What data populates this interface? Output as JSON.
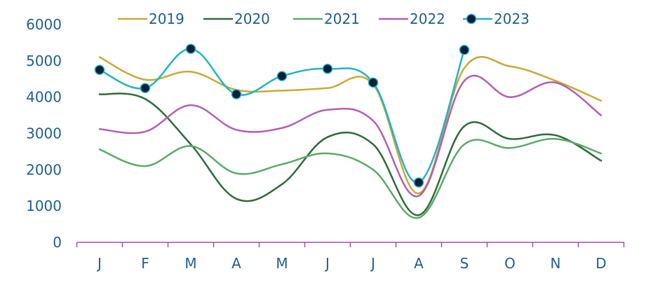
{
  "chart_data": {
    "type": "line",
    "title": "",
    "xlabel": "",
    "ylabel": "",
    "categories": [
      "J",
      "F",
      "M",
      "A",
      "M",
      "J",
      "J",
      "A",
      "S",
      "O",
      "N",
      "D"
    ],
    "y_ticks": [
      "0",
      "1000",
      "2000",
      "3000",
      "4000",
      "5000",
      "6000"
    ],
    "ylim": [
      0,
      6000
    ],
    "grid": false,
    "smooth": true,
    "legend_position": "top",
    "colors": {
      "axis": "#a64ca6",
      "tick_text": "#1f5f8b",
      "marker_fill": "#0b1e3a"
    },
    "series": [
      {
        "name": "2019",
        "color": "#c9a935",
        "markers": false,
        "values": [
          5100,
          4480,
          4700,
          4200,
          4180,
          4250,
          4350,
          1350,
          4800,
          4850,
          4450,
          3900
        ]
      },
      {
        "name": "2020",
        "color": "#2e6b3a",
        "markers": false,
        "values": [
          4080,
          3950,
          2700,
          1200,
          1600,
          2900,
          2700,
          750,
          3200,
          2850,
          2950,
          2250
        ]
      },
      {
        "name": "2021",
        "color": "#5aaa6a",
        "markers": false,
        "values": [
          2560,
          2100,
          2650,
          1900,
          2150,
          2450,
          2000,
          680,
          2700,
          2600,
          2850,
          2450
        ]
      },
      {
        "name": "2022",
        "color": "#b25fb2",
        "markers": false,
        "values": [
          3120,
          3050,
          3780,
          3100,
          3150,
          3650,
          3350,
          1280,
          4450,
          4000,
          4400,
          3500
        ]
      },
      {
        "name": "2023",
        "color": "#22b3c3",
        "markers": true,
        "values": [
          4750,
          4250,
          5330,
          4080,
          4580,
          4780,
          4400,
          1650,
          5300,
          null,
          null,
          null
        ]
      }
    ]
  }
}
